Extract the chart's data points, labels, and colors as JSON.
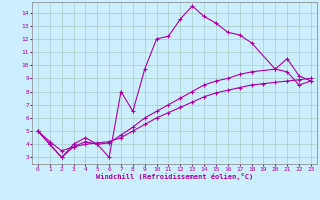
{
  "xlabel": "Windchill (Refroidissement éolien,°C)",
  "bg_color": "#cceeff",
  "grid_color": "#aacccc",
  "line_color": "#aa00aa",
  "xlim": [
    -0.5,
    23.5
  ],
  "ylim": [
    2.5,
    14.8
  ],
  "xticks": [
    0,
    1,
    2,
    3,
    4,
    5,
    6,
    7,
    8,
    9,
    10,
    11,
    12,
    13,
    14,
    15,
    16,
    17,
    18,
    19,
    20,
    21,
    22,
    23
  ],
  "yticks": [
    3,
    4,
    5,
    6,
    7,
    8,
    9,
    10,
    11,
    12,
    13,
    14
  ],
  "line1_x": [
    0,
    1,
    2,
    3,
    4,
    5,
    6,
    7,
    8,
    9,
    10,
    11,
    12,
    13,
    14,
    15,
    16,
    17,
    18,
    20,
    21,
    22,
    23
  ],
  "line1_y": [
    5.0,
    4.0,
    3.0,
    4.0,
    4.5,
    4.0,
    3.0,
    8.0,
    6.5,
    9.7,
    12.0,
    12.2,
    13.5,
    14.5,
    13.7,
    13.2,
    12.5,
    12.3,
    11.7,
    9.7,
    10.5,
    9.2,
    8.8
  ],
  "line2_x": [
    0,
    1,
    2,
    3,
    4,
    5,
    6,
    7,
    8,
    9,
    10,
    11,
    12,
    13,
    14,
    15,
    16,
    17,
    18,
    20,
    21,
    22,
    23
  ],
  "line2_y": [
    5.0,
    4.0,
    3.0,
    3.8,
    4.2,
    4.0,
    4.1,
    4.7,
    5.3,
    6.0,
    6.5,
    7.0,
    7.5,
    8.0,
    8.5,
    8.8,
    9.0,
    9.3,
    9.5,
    9.7,
    9.5,
    8.5,
    8.8
  ],
  "line3_x": [
    0,
    1,
    2,
    3,
    4,
    5,
    6,
    7,
    8,
    9,
    10,
    11,
    12,
    13,
    14,
    15,
    16,
    17,
    18,
    19,
    20,
    21,
    22,
    23
  ],
  "line3_y": [
    5.0,
    4.2,
    3.5,
    3.8,
    4.0,
    4.1,
    4.2,
    4.5,
    5.0,
    5.5,
    6.0,
    6.4,
    6.8,
    7.2,
    7.6,
    7.9,
    8.1,
    8.3,
    8.5,
    8.6,
    8.7,
    8.8,
    8.9,
    9.0
  ]
}
